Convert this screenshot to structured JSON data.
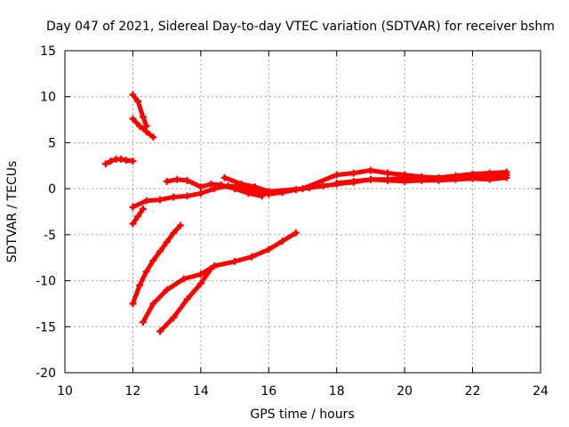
{
  "chart_data": {
    "type": "scatter",
    "title": "Day 047 of 2021, Sidereal Day-to-day VTEC variation (SDTVAR) for receiver bshm",
    "xlabel": "GPS time / hours",
    "ylabel": "SDTVAR / TECUs",
    "xlim": [
      10,
      24
    ],
    "ylim": [
      -20,
      15
    ],
    "x_ticks": [
      10,
      12,
      14,
      16,
      18,
      20,
      22,
      24
    ],
    "y_ticks": [
      -20,
      -15,
      -10,
      -5,
      0,
      5,
      10,
      15
    ],
    "x_tick_labels": [
      "10",
      "12",
      "14",
      "16",
      "18",
      "20",
      "22",
      "24"
    ],
    "y_tick_labels": [
      "-20",
      "-15",
      "-10",
      "-5",
      "0",
      "5",
      "10",
      "15"
    ],
    "grid": true,
    "marker": "+",
    "color": "#ff0000",
    "series": [
      {
        "name": "arc-early-cluster",
        "points": [
          [
            11.2,
            2.7
          ],
          [
            11.35,
            3.0
          ],
          [
            11.5,
            3.2
          ],
          [
            11.65,
            3.2
          ],
          [
            11.8,
            3.1
          ],
          [
            12.0,
            3.0
          ]
        ]
      },
      {
        "name": "arc-high-short",
        "points": [
          [
            12.0,
            10.2
          ],
          [
            12.15,
            9.5
          ],
          [
            12.3,
            7.8
          ],
          [
            12.4,
            6.8
          ]
        ]
      },
      {
        "name": "arc-high-decay",
        "points": [
          [
            12.0,
            7.6
          ],
          [
            12.2,
            6.8
          ],
          [
            12.4,
            6.2
          ],
          [
            12.6,
            5.6
          ]
        ]
      },
      {
        "name": "arc-main-upper",
        "points": [
          [
            12.0,
            -2.0
          ],
          [
            12.4,
            -1.3
          ],
          [
            12.8,
            -1.2
          ],
          [
            13.2,
            -0.9
          ],
          [
            13.6,
            -0.8
          ],
          [
            14.0,
            -0.5
          ],
          [
            14.4,
            0.0
          ],
          [
            14.8,
            0.3
          ],
          [
            15.2,
            0.2
          ],
          [
            15.6,
            -0.2
          ],
          [
            16.0,
            -0.6
          ],
          [
            16.4,
            -0.4
          ],
          [
            16.8,
            -0.1
          ],
          [
            17.2,
            0.1
          ],
          [
            17.6,
            0.3
          ],
          [
            18.0,
            0.5
          ],
          [
            18.5,
            0.7
          ],
          [
            19.0,
            1.0
          ],
          [
            19.5,
            1.0
          ],
          [
            20.0,
            1.2
          ],
          [
            20.5,
            1.1
          ],
          [
            21.0,
            1.0
          ],
          [
            21.5,
            1.1
          ],
          [
            22.0,
            1.3
          ],
          [
            22.5,
            1.4
          ],
          [
            23.0,
            1.5
          ]
        ]
      },
      {
        "name": "arc-mid-bump",
        "points": [
          [
            13.0,
            0.8
          ],
          [
            13.3,
            1.0
          ],
          [
            13.6,
            0.9
          ],
          [
            14.0,
            0.2
          ],
          [
            14.3,
            0.5
          ],
          [
            14.6,
            0.4
          ],
          [
            15.0,
            0.0
          ],
          [
            15.4,
            -0.5
          ],
          [
            15.8,
            -0.8
          ]
        ]
      },
      {
        "name": "arc-late-upper",
        "points": [
          [
            14.7,
            1.2
          ],
          [
            15.2,
            0.5
          ],
          [
            15.6,
            0.2
          ],
          [
            16.0,
            -0.3
          ],
          [
            17.0,
            0.0
          ],
          [
            18.0,
            1.5
          ],
          [
            18.5,
            1.7
          ],
          [
            19.0,
            2.0
          ],
          [
            19.5,
            1.7
          ],
          [
            20.0,
            1.5
          ],
          [
            20.5,
            1.3
          ],
          [
            21.0,
            1.2
          ],
          [
            21.5,
            1.4
          ],
          [
            22.0,
            1.6
          ],
          [
            22.5,
            1.7
          ],
          [
            23.0,
            1.8
          ]
        ]
      },
      {
        "name": "arc-late-lower",
        "points": [
          [
            18.0,
            0.6
          ],
          [
            18.5,
            0.8
          ],
          [
            19.0,
            1.0
          ],
          [
            19.5,
            0.9
          ],
          [
            20.0,
            0.8
          ],
          [
            20.5,
            0.9
          ],
          [
            21.0,
            0.9
          ],
          [
            21.5,
            1.0
          ],
          [
            22.0,
            1.1
          ],
          [
            22.5,
            1.0
          ],
          [
            23.0,
            1.2
          ]
        ]
      },
      {
        "name": "arc-steep-rise",
        "points": [
          [
            12.0,
            -12.5
          ],
          [
            12.2,
            -10.5
          ],
          [
            12.4,
            -9.0
          ],
          [
            12.6,
            -7.8
          ],
          [
            12.8,
            -6.8
          ],
          [
            13.0,
            -5.8
          ],
          [
            13.2,
            -4.8
          ],
          [
            13.4,
            -4.0
          ]
        ]
      },
      {
        "name": "arc-short-lower",
        "points": [
          [
            12.0,
            -3.8
          ],
          [
            12.15,
            -3.0
          ],
          [
            12.3,
            -2.2
          ]
        ]
      },
      {
        "name": "arc-mid-rise",
        "points": [
          [
            12.3,
            -14.5
          ],
          [
            12.6,
            -12.5
          ],
          [
            13.0,
            -11.0
          ],
          [
            13.5,
            -9.8
          ],
          [
            14.0,
            -9.3
          ],
          [
            14.4,
            -8.4
          ],
          [
            15.0,
            -7.9
          ],
          [
            15.5,
            -7.4
          ],
          [
            16.0,
            -6.6
          ],
          [
            16.4,
            -5.7
          ],
          [
            16.8,
            -4.8
          ]
        ]
      },
      {
        "name": "arc-low-rise",
        "points": [
          [
            12.8,
            -15.5
          ],
          [
            13.2,
            -14.0
          ],
          [
            13.6,
            -12.0
          ],
          [
            14.0,
            -10.3
          ],
          [
            14.3,
            -8.7
          ]
        ]
      }
    ]
  }
}
